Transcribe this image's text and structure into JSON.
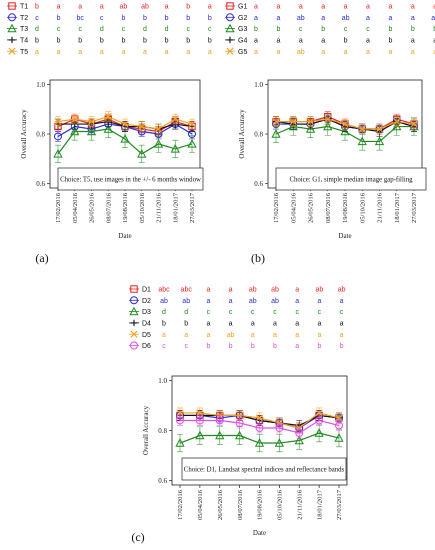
{
  "chart_data": [
    {
      "type": "line",
      "panel_label": "(a)",
      "ylabel": "Overall Accuracy",
      "xlabel": "Date",
      "ylim": [
        0.6,
        1.0
      ],
      "yticks": [
        "0.6",
        "0.8",
        "1.0"
      ],
      "annotation": "Choice: T5, use images in the +/- 6 months window",
      "categories": [
        "17/02/2016",
        "05/04/2016",
        "26/05/2016",
        "08/07/2016",
        "19/08/2016",
        "05/10/2016",
        "21/11/2016",
        "18/01/2017",
        "27/03/2017"
      ],
      "series": [
        {
          "name": "T1",
          "color": "#e8201e",
          "marker": "square",
          "values": [
            0.83,
            0.86,
            0.84,
            0.86,
            0.83,
            0.82,
            0.81,
            0.85,
            0.83
          ],
          "letters": [
            "b",
            "a",
            "a",
            "a",
            "ab",
            "ab",
            "a",
            "b",
            "a"
          ]
        },
        {
          "name": "T2",
          "color": "#2b2bd6",
          "marker": "circle",
          "values": [
            0.79,
            0.83,
            0.82,
            0.84,
            0.83,
            0.81,
            0.8,
            0.84,
            0.8
          ],
          "letters": [
            "c",
            "b",
            "bc",
            "c",
            "b",
            "b",
            "b",
            "b",
            "b"
          ]
        },
        {
          "name": "T3",
          "color": "#1e8a1e",
          "marker": "triangle",
          "values": [
            0.72,
            0.81,
            0.81,
            0.82,
            0.78,
            0.72,
            0.76,
            0.74,
            0.76
          ],
          "letters": [
            "d",
            "c",
            "c",
            "d",
            "c",
            "d",
            "d",
            "c",
            "c"
          ]
        },
        {
          "name": "T4",
          "color": "#111111",
          "marker": "plus",
          "values": [
            0.84,
            0.84,
            0.84,
            0.85,
            0.83,
            0.83,
            0.82,
            0.84,
            0.83
          ],
          "letters": [
            "b",
            "b",
            "b",
            "b",
            "b",
            "b",
            "b",
            "b",
            "b"
          ]
        },
        {
          "name": "T5",
          "color": "#f0a020",
          "marker": "cross",
          "values": [
            0.85,
            0.86,
            0.85,
            0.87,
            0.84,
            0.83,
            0.82,
            0.86,
            0.84
          ],
          "letters": [
            "a",
            "a",
            "a",
            "a",
            "a",
            "a",
            "a",
            "a",
            "a"
          ]
        }
      ]
    },
    {
      "type": "line",
      "panel_label": "(b)",
      "ylabel": "Overall Accuracy",
      "xlabel": "Date",
      "ylim": [
        0.6,
        1.0
      ],
      "yticks": [
        "0.6",
        "0.8",
        "1.0"
      ],
      "annotation": "Choice: G1, simple median image gap-filling",
      "categories": [
        "17/02/2016",
        "05/04/2016",
        "26/05/2016",
        "08/07/2016",
        "19/08/2016",
        "05/10/2016",
        "21/11/2016",
        "18/01/2017",
        "27/03/2017"
      ],
      "series": [
        {
          "name": "G1",
          "color": "#e8201e",
          "marker": "square",
          "values": [
            0.85,
            0.85,
            0.85,
            0.87,
            0.84,
            0.82,
            0.82,
            0.86,
            0.84
          ],
          "letters": [
            "a",
            "a",
            "a",
            "a",
            "a",
            "a",
            "a",
            "a",
            "a"
          ]
        },
        {
          "name": "G2",
          "color": "#2b2bd6",
          "marker": "circle",
          "values": [
            0.84,
            0.84,
            0.84,
            0.86,
            0.83,
            0.82,
            0.82,
            0.85,
            0.83
          ],
          "letters": [
            "a",
            "a",
            "ab",
            "a",
            "ab",
            "a",
            "a",
            "a",
            "ab"
          ]
        },
        {
          "name": "G3",
          "color": "#1e8a1e",
          "marker": "triangle",
          "values": [
            0.8,
            0.83,
            0.82,
            0.83,
            0.81,
            0.77,
            0.77,
            0.83,
            0.83
          ],
          "letters": [
            "b",
            "b",
            "c",
            "b",
            "c",
            "c",
            "b",
            "b",
            "b"
          ]
        },
        {
          "name": "G4",
          "color": "#111111",
          "marker": "plus",
          "values": [
            0.85,
            0.84,
            0.84,
            0.86,
            0.83,
            0.82,
            0.81,
            0.85,
            0.83
          ],
          "letters": [
            "a",
            "a",
            "a",
            "a",
            "b",
            "a",
            "b",
            "a",
            "a"
          ]
        },
        {
          "name": "G5",
          "color": "#f0a020",
          "marker": "cross",
          "values": [
            0.85,
            0.85,
            0.85,
            0.86,
            0.84,
            0.82,
            0.82,
            0.85,
            0.84
          ],
          "letters": [
            "a",
            "a",
            "ab",
            "a",
            "a",
            "a",
            "a",
            "a",
            "a"
          ]
        }
      ]
    },
    {
      "type": "line",
      "panel_label": "(c)",
      "ylabel": "Overall Accuracy",
      "xlabel": "Date",
      "ylim": [
        0.6,
        1.0
      ],
      "yticks": [
        "0.6",
        "0.8",
        "1.0"
      ],
      "annotation": "Choice: D1, Landsat spectral indices and reflectance bands",
      "categories": [
        "17/02/2016",
        "05/04/2016",
        "26/05/2016",
        "08/07/2016",
        "19/08/2016",
        "05/10/2016",
        "21/11/2016",
        "18/01/2017",
        "27/03/2017"
      ],
      "series": [
        {
          "name": "D1",
          "color": "#e8201e",
          "marker": "square",
          "values": [
            0.86,
            0.86,
            0.86,
            0.86,
            0.84,
            0.83,
            0.81,
            0.86,
            0.85
          ],
          "letters": [
            "abc",
            "abc",
            "a",
            "a",
            "ab",
            "ab",
            "a",
            "ab",
            "ab"
          ]
        },
        {
          "name": "D2",
          "color": "#2b2bd6",
          "marker": "circle",
          "values": [
            0.86,
            0.86,
            0.85,
            0.86,
            0.84,
            0.83,
            0.81,
            0.86,
            0.85
          ],
          "letters": [
            "ab",
            "ab",
            "a",
            "a",
            "ab",
            "ab",
            "a",
            "a",
            "a"
          ]
        },
        {
          "name": "D3",
          "color": "#1e8a1e",
          "marker": "triangle",
          "values": [
            0.75,
            0.78,
            0.78,
            0.78,
            0.75,
            0.75,
            0.76,
            0.79,
            0.77
          ],
          "letters": [
            "d",
            "d",
            "c",
            "c",
            "c",
            "c",
            "c",
            "c",
            "c"
          ]
        },
        {
          "name": "D4",
          "color": "#111111",
          "marker": "plus",
          "values": [
            0.86,
            0.86,
            0.86,
            0.86,
            0.84,
            0.83,
            0.82,
            0.86,
            0.85
          ],
          "letters": [
            "b",
            "b",
            "a",
            "a",
            "a",
            "a",
            "a",
            "a",
            "a"
          ]
        },
        {
          "name": "D5",
          "color": "#f0a020",
          "marker": "cross",
          "values": [
            0.87,
            0.87,
            0.86,
            0.86,
            0.85,
            0.83,
            0.81,
            0.87,
            0.85
          ],
          "letters": [
            "a",
            "a",
            "a",
            "ab",
            "a",
            "a",
            "a",
            "a",
            "a"
          ]
        },
        {
          "name": "D6",
          "color": "#e24ee2",
          "marker": "circle",
          "values": [
            0.84,
            0.84,
            0.84,
            0.83,
            0.81,
            0.81,
            0.79,
            0.84,
            0.82
          ],
          "letters": [
            "c",
            "c",
            "b",
            "b",
            "b",
            "b",
            "a",
            "b",
            "b"
          ]
        }
      ]
    }
  ]
}
